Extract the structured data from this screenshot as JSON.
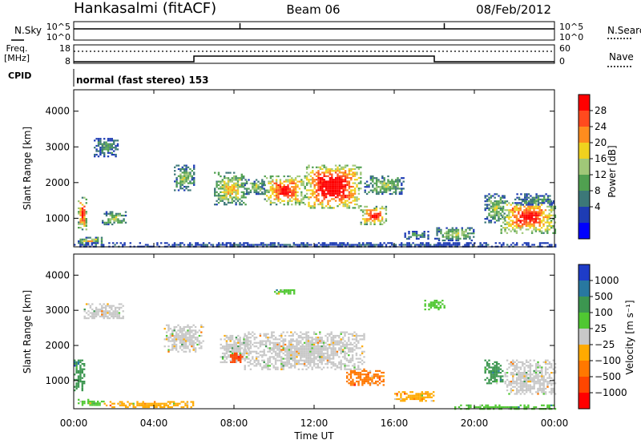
{
  "header": {
    "station": "Hankasalmi (fitACF)",
    "beam": "Beam 06",
    "date": "08/Feb/2012"
  },
  "noise_panel": {
    "left_label": "N.Sky",
    "right_label": "N.Search",
    "left_ticks": [
      "10^5",
      "10^0"
    ],
    "right_ticks": [
      "10^5",
      "10^0"
    ],
    "spikes": [
      {
        "time_h": 8.3,
        "level": 0.9
      },
      {
        "time_h": 18.5,
        "level": 0.9
      }
    ]
  },
  "freq_panel": {
    "left_label_1": "Freq.",
    "left_label_2": "[MHz]",
    "right_label": "Nave",
    "left_ticks": [
      "18",
      "8"
    ],
    "right_ticks": [
      "60",
      "0"
    ],
    "nave_steps": [
      {
        "from_h": 0,
        "to_h": 6,
        "level": 0.0
      },
      {
        "from_h": 6,
        "to_h": 18,
        "level": 0.35
      },
      {
        "from_h": 18,
        "to_h": 24,
        "level": 0.0
      }
    ]
  },
  "cpid_panel": {
    "label": "CPID",
    "text": "normal (fast stereo) 153"
  },
  "axes": {
    "ylabel": "Slant Range [km]",
    "xlabel": "Time UT",
    "yticks": [
      "1000",
      "2000",
      "3000",
      "4000"
    ],
    "xticks": [
      "00:00",
      "04:00",
      "08:00",
      "12:00",
      "16:00",
      "20:00",
      "00:00"
    ]
  },
  "power_colorbar": {
    "label": "Power [dB]",
    "ticks": [
      "28",
      "24",
      "20",
      "16",
      "12",
      "8",
      "4"
    ],
    "colors": [
      "#ff0000",
      "#ff4a1e",
      "#ff8c1e",
      "#f0d21e",
      "#a0c878",
      "#50a050",
      "#3c7878",
      "#1e3cb4",
      "#0000ff"
    ]
  },
  "velocity_colorbar": {
    "label": "Velocity [m s⁻¹]",
    "ticks": [
      "1000",
      "500",
      "100",
      "25",
      "−25",
      "−100",
      "−500",
      "−1000"
    ],
    "colors": [
      "#1e3cc8",
      "#2878a0",
      "#3c9650",
      "#50c832",
      "#c8c8c8",
      "#ffaa00",
      "#ff7800",
      "#ff4600",
      "#ff0000"
    ]
  },
  "chart_data": [
    {
      "type": "heatmap",
      "title": "Power",
      "x_unit": "hours UT",
      "y_unit": "km",
      "xlim": [
        0,
        24
      ],
      "ylim": [
        200,
        4600
      ],
      "regions": [
        {
          "t0": 1.0,
          "t1": 2.2,
          "r0": 2750,
          "r1": 3250,
          "lvl": 2
        },
        {
          "t0": 0.2,
          "t1": 0.6,
          "r0": 700,
          "r1": 1600,
          "lvl": 6
        },
        {
          "t0": 0.2,
          "t1": 1.4,
          "r0": 280,
          "r1": 480,
          "lvl": 4
        },
        {
          "t0": 1.4,
          "t1": 2.6,
          "r0": 850,
          "r1": 1200,
          "lvl": 3
        },
        {
          "t0": 5.0,
          "t1": 6.0,
          "r0": 1800,
          "r1": 2500,
          "lvl": 3
        },
        {
          "t0": 7.0,
          "t1": 8.6,
          "r0": 1400,
          "r1": 2300,
          "lvl": 4
        },
        {
          "t0": 8.5,
          "t1": 9.5,
          "r0": 1700,
          "r1": 2100,
          "lvl": 3
        },
        {
          "t0": 9.5,
          "t1": 11.5,
          "r0": 1400,
          "r1": 2200,
          "lvl": 6
        },
        {
          "t0": 11.5,
          "t1": 14.3,
          "r0": 1300,
          "r1": 2500,
          "lvl": 7
        },
        {
          "t0": 14.3,
          "t1": 15.6,
          "r0": 850,
          "r1": 1350,
          "lvl": 6
        },
        {
          "t0": 14.5,
          "t1": 16.5,
          "r0": 1700,
          "r1": 2200,
          "lvl": 3
        },
        {
          "t0": 16.5,
          "t1": 17.8,
          "r0": 450,
          "r1": 650,
          "lvl": 2
        },
        {
          "t0": 18.0,
          "t1": 20.0,
          "r0": 400,
          "r1": 750,
          "lvl": 3
        },
        {
          "t0": 20.5,
          "t1": 21.5,
          "r0": 900,
          "r1": 1700,
          "lvl": 3
        },
        {
          "t0": 21.3,
          "t1": 24.0,
          "r0": 600,
          "r1": 1500,
          "lvl": 6
        },
        {
          "t0": 22.0,
          "t1": 24.0,
          "r0": 1400,
          "r1": 1700,
          "lvl": 2
        },
        {
          "t0": 0.0,
          "t1": 24.0,
          "r0": 200,
          "r1": 330,
          "lvl": 1
        }
      ]
    },
    {
      "type": "heatmap",
      "title": "Velocity",
      "x_unit": "hours UT",
      "y_unit": "km",
      "xlim": [
        0,
        24
      ],
      "ylim": [
        200,
        4600
      ],
      "regions": [
        {
          "t0": 0.5,
          "t1": 2.5,
          "r0": 2750,
          "r1": 3200,
          "lvl": 4
        },
        {
          "t0": 0.0,
          "t1": 0.5,
          "r0": 700,
          "r1": 1600,
          "lvl": 2
        },
        {
          "t0": 0.2,
          "t1": 1.5,
          "r0": 280,
          "r1": 480,
          "lvl": 3
        },
        {
          "t0": 1.5,
          "t1": 6.0,
          "r0": 220,
          "r1": 420,
          "lvl": 5
        },
        {
          "t0": 4.5,
          "t1": 6.5,
          "r0": 1800,
          "r1": 2600,
          "lvl": 4
        },
        {
          "t0": 7.3,
          "t1": 8.8,
          "r0": 1500,
          "r1": 2300,
          "lvl": 4
        },
        {
          "t0": 7.8,
          "t1": 8.4,
          "r0": 1500,
          "r1": 1800,
          "lvl": 7
        },
        {
          "t0": 8.5,
          "t1": 14.5,
          "r0": 1300,
          "r1": 2400,
          "lvl": 4
        },
        {
          "t0": 13.6,
          "t1": 15.5,
          "r0": 850,
          "r1": 1300,
          "lvl": 6
        },
        {
          "t0": 16.0,
          "t1": 18.0,
          "r0": 400,
          "r1": 700,
          "lvl": 5
        },
        {
          "t0": 20.5,
          "t1": 21.4,
          "r0": 900,
          "r1": 1600,
          "lvl": 2
        },
        {
          "t0": 21.5,
          "t1": 24.0,
          "r0": 600,
          "r1": 1600,
          "lvl": 4
        },
        {
          "t0": 10.0,
          "t1": 11.0,
          "r0": 3450,
          "r1": 3650,
          "lvl": 3
        },
        {
          "t0": 17.5,
          "t1": 18.5,
          "r0": 3000,
          "r1": 3300,
          "lvl": 3
        },
        {
          "t0": 19.0,
          "t1": 24.0,
          "r0": 200,
          "r1": 320,
          "lvl": 3
        }
      ]
    }
  ]
}
